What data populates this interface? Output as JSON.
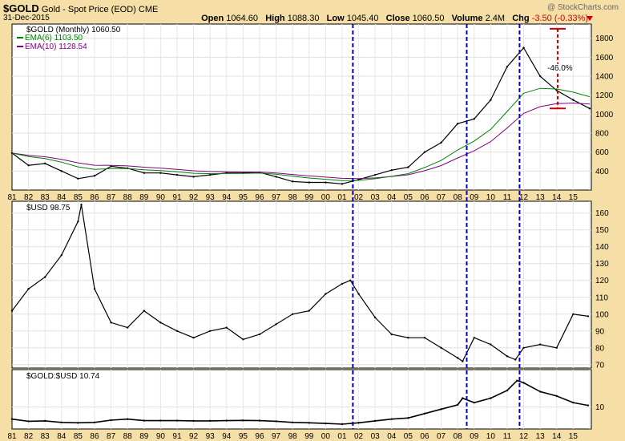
{
  "header": {
    "symbol": "$GOLD",
    "name": "Gold - Spot Price (EOD)",
    "exchange": "CME",
    "date": "31-Dec-2015",
    "credit": "@ StockCharts.com",
    "open_label": "Open",
    "open": "1064.60",
    "high_label": "High",
    "high": "1088.30",
    "low_label": "Low",
    "low": "1045.40",
    "close_label": "Close",
    "close": "1060.50",
    "volume_label": "Volume",
    "volume": "2.4M",
    "chg_label": "Chg",
    "chg": "-3.50 (-0.33%)"
  },
  "colors": {
    "background": "#f5dfa6",
    "panel": "#ffffff",
    "ema6": "#008000",
    "ema10": "#800080",
    "price": "#000000",
    "vline": "#0000cc",
    "bracket": "#cc0000"
  },
  "chart_data": [
    {
      "type": "line",
      "title": "$GOLD (Monthly) 1060.50",
      "legend": [
        {
          "label": "EMA(6) 1103.50",
          "color": "#008000"
        },
        {
          "label": "EMA(10) 1128.54",
          "color": "#800080"
        }
      ],
      "ylim": [
        200,
        1950
      ],
      "y_ticks": [
        "400",
        "600",
        "800",
        "1000",
        "1200",
        "1400",
        "1600",
        "1800"
      ],
      "x": [
        1981,
        1982,
        1983,
        1984,
        1985,
        1986,
        1987,
        1988,
        1989,
        1990,
        1991,
        1992,
        1993,
        1994,
        1995,
        1996,
        1997,
        1998,
        1999,
        2000,
        2001,
        2002,
        2003,
        2004,
        2005,
        2006,
        2007,
        2008,
        2009,
        2010,
        2011,
        2012,
        2013,
        2014,
        2015,
        2016
      ],
      "values": [
        590,
        460,
        480,
        400,
        320,
        350,
        450,
        430,
        380,
        380,
        360,
        340,
        360,
        380,
        380,
        385,
        340,
        290,
        280,
        280,
        265,
        310,
        360,
        410,
        440,
        600,
        700,
        900,
        950,
        1150,
        1500,
        1700,
        1400,
        1250,
        1150,
        1060
      ],
      "annotation": "-46.0%"
    },
    {
      "type": "line",
      "title": "$USD 98.75",
      "ylim": [
        68,
        167
      ],
      "y_ticks": [
        "70",
        "80",
        "90",
        "100",
        "110",
        "120",
        "130",
        "140",
        "150",
        "160"
      ],
      "x": [
        1981,
        1982,
        1983,
        1984,
        1985,
        1985.2,
        1986,
        1987,
        1988,
        1989,
        1990,
        1991,
        1992,
        1993,
        1994,
        1995,
        1996,
        1997,
        1998,
        1999,
        2000,
        2001,
        2001.5,
        2002,
        2003,
        2004,
        2005,
        2006,
        2007,
        2008,
        2008.3,
        2009,
        2010,
        2011,
        2011.5,
        2012,
        2013,
        2014,
        2015,
        2015.9
      ],
      "values": [
        102,
        115,
        122,
        135,
        155,
        165,
        115,
        95,
        92,
        102,
        95,
        90,
        86,
        90,
        92,
        85,
        88,
        94,
        100,
        102,
        112,
        118,
        120,
        112,
        98,
        88,
        86,
        86,
        80,
        74,
        72,
        86,
        82,
        75,
        73,
        80,
        82,
        80,
        100,
        98.75
      ]
    },
    {
      "type": "line",
      "title": "$GOLD:$USD 10.74",
      "ylim": [
        0,
        27
      ],
      "y_ticks": [
        "10"
      ],
      "x": [
        1981,
        1982,
        1983,
        1984,
        1985,
        1986,
        1987,
        1988,
        1989,
        1990,
        1991,
        1992,
        1993,
        1994,
        1995,
        1996,
        1997,
        1998,
        1999,
        2000,
        2001,
        2002,
        2003,
        2004,
        2005,
        2006,
        2007,
        2008,
        2008.3,
        2009,
        2010,
        2011,
        2011.6,
        2012,
        2013,
        2014,
        2015,
        2015.9
      ],
      "values": [
        4.5,
        3.5,
        3.7,
        3,
        2.8,
        3,
        4,
        4.5,
        3.8,
        3.8,
        3.8,
        3.7,
        3.7,
        3.8,
        3.9,
        3.8,
        3.5,
        3,
        2.8,
        2.5,
        2.2,
        2.8,
        3.7,
        4.5,
        5,
        7,
        9,
        11,
        14,
        12,
        14,
        17.5,
        22,
        21,
        17,
        15,
        12,
        10.74
      ]
    }
  ],
  "x_axis_labels": [
    "81",
    "82",
    "83",
    "84",
    "85",
    "86",
    "87",
    "88",
    "89",
    "90",
    "91",
    "92",
    "93",
    "94",
    "95",
    "96",
    "97",
    "98",
    "99",
    "00",
    "01",
    "02",
    "03",
    "04",
    "05",
    "06",
    "07",
    "08",
    "09",
    "10",
    "11",
    "12",
    "13",
    "14",
    "15"
  ],
  "vertical_markers": [
    2001.65,
    2008.55,
    2011.75
  ]
}
